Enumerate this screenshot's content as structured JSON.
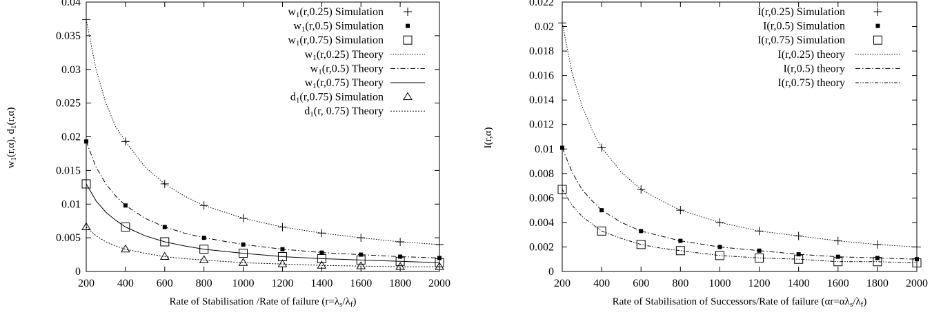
{
  "charts": [
    {
      "type": "line",
      "xlabel": "Rate of Stabilisation /Rate of failure (r=λₛ/λᶠ)",
      "xlabel_parts": [
        "Rate of Stabilisation /Rate of failure (r=λ",
        "s",
        "/λ",
        "f",
        ")"
      ],
      "ylabel": "w₁(r,α), d₁(r,α)",
      "ylabel_parts": [
        "w",
        "1",
        "(r,α), d",
        "1",
        "(r,α)"
      ],
      "xlim": [
        200,
        2000
      ],
      "ylim": [
        0,
        0.04
      ],
      "x_ticks": [
        200,
        400,
        600,
        800,
        1000,
        1200,
        1400,
        1600,
        1800,
        2000
      ],
      "x_tick_labels": [
        "200",
        "400",
        "600",
        "800",
        "1000",
        "1200",
        "1400",
        "1600",
        "1800",
        "2000"
      ],
      "y_ticks": [
        0,
        0.005,
        0.01,
        0.015,
        0.02,
        0.025,
        0.03,
        0.035,
        0.04
      ],
      "y_tick_labels": [
        "0",
        "0.005",
        "0.01",
        "0.015",
        "0.02",
        "0.025",
        "0.03",
        "0.035",
        "0.04"
      ],
      "grid": false,
      "legend_position": "top-right",
      "series": [
        {
          "name": "w₁(r,0.25) Simulation",
          "name_parts": [
            "w",
            "1",
            "(r,0.25) Simulation"
          ],
          "kind": "points",
          "marker": "plus",
          "x": [
            200,
            400,
            600,
            800,
            1000,
            1200,
            1400,
            1600,
            1800,
            2000
          ],
          "y": [
            0.0374,
            0.0193,
            0.013,
            0.0098,
            0.0079,
            0.0066,
            0.0057,
            0.005,
            0.0044,
            0.004
          ]
        },
        {
          "name": "w₁(r,0.5) Simulation",
          "name_parts": [
            "w",
            "1",
            "(r,0.5) Simulation"
          ],
          "kind": "points",
          "marker": "square-filled",
          "x": [
            200,
            400,
            600,
            800,
            1000,
            1200,
            1400,
            1600,
            1800,
            2000
          ],
          "y": [
            0.0193,
            0.0098,
            0.0066,
            0.005,
            0.004,
            0.0033,
            0.0028,
            0.0025,
            0.0022,
            0.002
          ]
        },
        {
          "name": "w₁(r,0.75) Simulation",
          "name_parts": [
            "w",
            "1",
            "(r,0.75) Simulation"
          ],
          "kind": "points",
          "marker": "square-open",
          "x": [
            200,
            400,
            600,
            800,
            1000,
            1200,
            1400,
            1600,
            1800,
            2000
          ],
          "y": [
            0.013,
            0.0066,
            0.0044,
            0.0033,
            0.0027,
            0.0022,
            0.0019,
            0.0017,
            0.0015,
            0.0013
          ]
        },
        {
          "name": "w₁(r,0.25) Theory",
          "name_parts": [
            "w",
            "1",
            "(r,0.25) Theory"
          ],
          "kind": "line",
          "dash": "1.5,2",
          "x": [
            200,
            250,
            300,
            350,
            400,
            500,
            600,
            700,
            800,
            1000,
            1200,
            1400,
            1600,
            1800,
            2000
          ],
          "y": [
            0.0374,
            0.03,
            0.025,
            0.0215,
            0.0193,
            0.0155,
            0.013,
            0.0112,
            0.0098,
            0.0079,
            0.0066,
            0.0057,
            0.005,
            0.0044,
            0.004
          ]
        },
        {
          "name": "w₁(r,0.5) Theory",
          "name_parts": [
            "w",
            "1",
            "(r,0.5) Theory"
          ],
          "kind": "line",
          "dash": "7,3,1.5,3",
          "x": [
            200,
            250,
            300,
            350,
            400,
            500,
            600,
            700,
            800,
            1000,
            1200,
            1400,
            1600,
            1800,
            2000
          ],
          "y": [
            0.0193,
            0.0155,
            0.013,
            0.0112,
            0.0098,
            0.0079,
            0.0066,
            0.0057,
            0.005,
            0.004,
            0.0033,
            0.0028,
            0.0025,
            0.0022,
            0.002
          ]
        },
        {
          "name": "w₁(r,0.75) Theory",
          "name_parts": [
            "w",
            "1",
            "(r,0.75) Theory"
          ],
          "kind": "line",
          "dash": "",
          "x": [
            200,
            250,
            300,
            350,
            400,
            500,
            600,
            700,
            800,
            1000,
            1200,
            1400,
            1600,
            1800,
            2000
          ],
          "y": [
            0.013,
            0.0105,
            0.0088,
            0.0076,
            0.0066,
            0.0053,
            0.0044,
            0.0038,
            0.0033,
            0.0027,
            0.0022,
            0.0019,
            0.0017,
            0.0015,
            0.0013
          ]
        },
        {
          "name": "d₁(r,0.75) Simulation",
          "name_parts": [
            "d",
            "1",
            "(r,0.75) Simulation"
          ],
          "kind": "points",
          "marker": "triangle",
          "x": [
            200,
            400,
            600,
            800,
            1000,
            1200,
            1400,
            1600,
            1800,
            2000
          ],
          "y": [
            0.0066,
            0.0033,
            0.0022,
            0.0017,
            0.0013,
            0.0011,
            0.0009,
            0.0008,
            0.0007,
            0.0007
          ]
        },
        {
          "name": "d₁(r, 0.75) Theory",
          "name_parts": [
            "d",
            "1",
            "(r, 0.75) Theory"
          ],
          "kind": "line",
          "dash": "2,2",
          "x": [
            200,
            250,
            300,
            350,
            400,
            500,
            600,
            700,
            800,
            1000,
            1200,
            1400,
            1600,
            1800,
            2000
          ],
          "y": [
            0.0066,
            0.0053,
            0.0044,
            0.0038,
            0.0033,
            0.0027,
            0.0022,
            0.0019,
            0.0017,
            0.0013,
            0.0011,
            0.0009,
            0.0008,
            0.0007,
            0.0007
          ]
        }
      ]
    },
    {
      "type": "line",
      "xlabel": "Rate of Stabilisation of Successors/Rate of failure (αr=αλₛ/λᶠ)",
      "xlabel_parts": [
        "Rate of Stabilisation of Successors/Rate of failure (αr=αλ",
        "s",
        "/λ",
        "f",
        ")"
      ],
      "ylabel": "I(r,α)",
      "ylabel_parts": [
        "I(r,α)"
      ],
      "xlim": [
        200,
        2000
      ],
      "ylim": [
        0,
        0.022
      ],
      "x_ticks": [
        200,
        400,
        600,
        800,
        1000,
        1200,
        1400,
        1600,
        1800,
        2000
      ],
      "x_tick_labels": [
        "200",
        "400",
        "600",
        "800",
        "1000",
        "1200",
        "1400",
        "1600",
        "1800",
        "2000"
      ],
      "y_ticks": [
        0,
        0.002,
        0.004,
        0.006,
        0.008,
        0.01,
        0.012,
        0.014,
        0.016,
        0.018,
        0.02,
        0.022
      ],
      "y_tick_labels": [
        "0",
        "0.002",
        "0.004",
        "0.006",
        "0.008",
        "0.01",
        "0.012",
        "0.014",
        "0.016",
        "0.018",
        "0.02",
        "0.022"
      ],
      "grid": false,
      "legend_position": "top-right",
      "series": [
        {
          "name": "I(r,0.25) Simulation",
          "name_parts": [
            "I(r,0.25) Simulation"
          ],
          "kind": "points",
          "marker": "plus",
          "x": [
            200,
            400,
            600,
            800,
            1000,
            1200,
            1400,
            1600,
            1800,
            2000
          ],
          "y": [
            0.0203,
            0.0101,
            0.0067,
            0.005,
            0.004,
            0.0033,
            0.0029,
            0.0025,
            0.0022,
            0.002
          ]
        },
        {
          "name": "I(r,0.5) Simulation",
          "name_parts": [
            "I(r,0.5) Simulation"
          ],
          "kind": "points",
          "marker": "square-filled",
          "x": [
            200,
            400,
            600,
            800,
            1000,
            1200,
            1400,
            1600,
            1800,
            2000
          ],
          "y": [
            0.0101,
            0.005,
            0.0033,
            0.0025,
            0.002,
            0.0017,
            0.0014,
            0.0012,
            0.0011,
            0.001
          ]
        },
        {
          "name": "I(r,0.75) Simulation",
          "name_parts": [
            "I(r,0.75) Simulation"
          ],
          "kind": "points",
          "marker": "square-open",
          "x": [
            200,
            400,
            600,
            800,
            1000,
            1200,
            1400,
            1600,
            1800,
            2000
          ],
          "y": [
            0.0067,
            0.0033,
            0.0022,
            0.0017,
            0.0013,
            0.0011,
            0.001,
            0.0008,
            0.0008,
            0.0007
          ]
        },
        {
          "name": "I(r,0.25) theory",
          "name_parts": [
            "I(r,0.25) theory"
          ],
          "kind": "line",
          "dash": "1.5,2",
          "x": [
            200,
            250,
            300,
            350,
            400,
            500,
            600,
            700,
            800,
            1000,
            1200,
            1400,
            1600,
            1800,
            2000
          ],
          "y": [
            0.0203,
            0.0162,
            0.0135,
            0.0116,
            0.0101,
            0.0081,
            0.0067,
            0.0058,
            0.005,
            0.004,
            0.0033,
            0.0029,
            0.0025,
            0.0022,
            0.002
          ]
        },
        {
          "name": "I(r,0.5) theory",
          "name_parts": [
            "I(r,0.5) theory"
          ],
          "kind": "line",
          "dash": "7,3,1.5,3",
          "x": [
            200,
            250,
            300,
            350,
            400,
            500,
            600,
            700,
            800,
            1000,
            1200,
            1400,
            1600,
            1800,
            2000
          ],
          "y": [
            0.0101,
            0.0081,
            0.0067,
            0.0058,
            0.005,
            0.004,
            0.0033,
            0.0029,
            0.0025,
            0.002,
            0.0017,
            0.0014,
            0.0012,
            0.0011,
            0.001
          ]
        },
        {
          "name": "I(r,0.75) theory",
          "name_parts": [
            "I(r,0.75) theory"
          ],
          "kind": "line",
          "dash": "5,2,1.5,2,1.5,2",
          "x": [
            200,
            250,
            300,
            350,
            400,
            500,
            600,
            700,
            800,
            1000,
            1200,
            1400,
            1600,
            1800,
            2000
          ],
          "y": [
            0.0067,
            0.0054,
            0.0045,
            0.0039,
            0.0033,
            0.0027,
            0.0022,
            0.0019,
            0.0017,
            0.0013,
            0.0011,
            0.001,
            0.0008,
            0.0008,
            0.0007
          ]
        }
      ]
    }
  ]
}
